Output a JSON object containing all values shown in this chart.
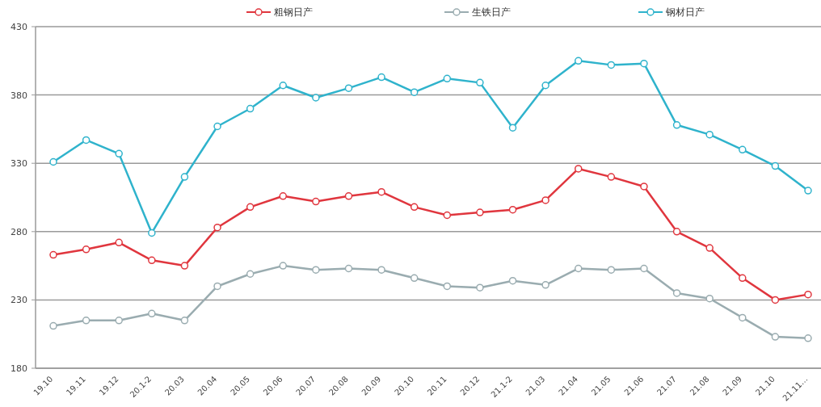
{
  "chart_data": {
    "type": "line",
    "categories": [
      "19.10",
      "19.11",
      "19.12",
      "20.1-2",
      "20.03",
      "20.04",
      "20.05",
      "20.06",
      "20.07",
      "20.08",
      "20.09",
      "20.10",
      "20.11",
      "20.12",
      "21.1-2",
      "21.03",
      "21.04",
      "21.05",
      "21.06",
      "21.07",
      "21.08",
      "21.09",
      "21.10",
      "21.11…"
    ],
    "series": [
      {
        "name": "粗钢日产",
        "color": "#e0363e",
        "values": [
          263,
          267,
          272,
          259,
          255,
          283,
          298,
          306,
          302,
          306,
          309,
          298,
          292,
          294,
          296,
          303,
          326,
          320,
          313,
          280,
          268,
          246,
          230,
          234
        ]
      },
      {
        "name": "生铁日产",
        "color": "#9aacb0",
        "values": [
          211,
          215,
          215,
          220,
          215,
          240,
          249,
          255,
          252,
          253,
          252,
          246,
          240,
          239,
          244,
          241,
          253,
          252,
          253,
          235,
          231,
          217,
          203,
          202
        ]
      },
      {
        "name": "钢材日产",
        "color": "#2fb3cc",
        "values": [
          331,
          347,
          337,
          279,
          320,
          357,
          370,
          387,
          378,
          385,
          393,
          382,
          392,
          389,
          356,
          387,
          405,
          402,
          403,
          358,
          351,
          340,
          328,
          310
        ]
      }
    ],
    "ylim": [
      180,
      430
    ],
    "yticks": [
      180,
      230,
      280,
      330,
      380,
      430
    ],
    "grid": "y",
    "legend": "top",
    "marker": "circle",
    "line_style": "solid"
  }
}
